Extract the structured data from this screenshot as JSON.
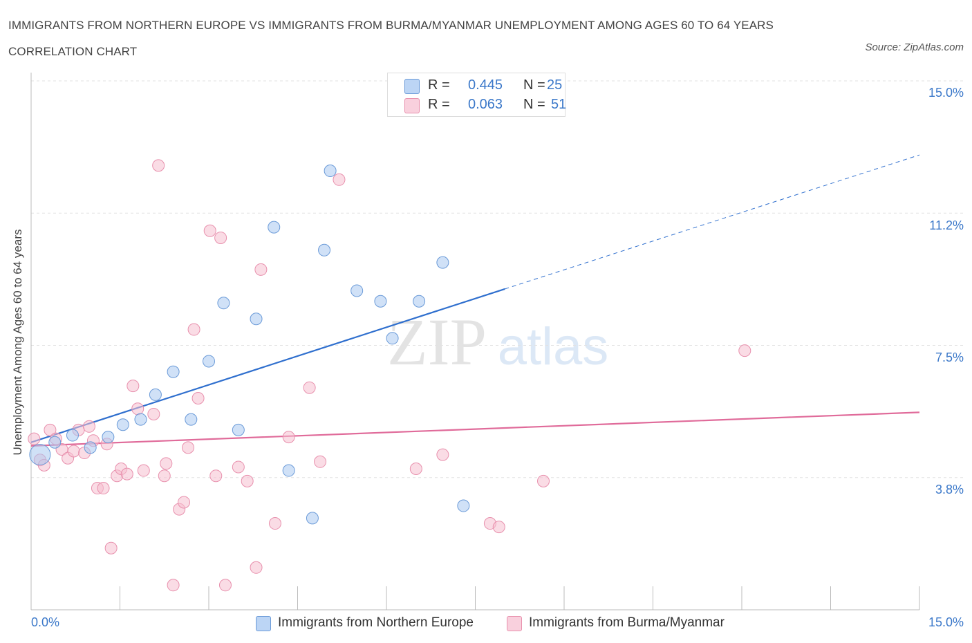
{
  "chart_data": {
    "type": "scatter",
    "title": "IMMIGRANTS FROM NORTHERN EUROPE VS IMMIGRANTS FROM BURMA/MYANMAR UNEMPLOYMENT AMONG AGES 60 TO 64 YEARS CORRELATION CHART",
    "source": "Source: ZipAtlas.com",
    "ylabel": "Unemployment Among Ages 60 to 64 years",
    "xlabel": "",
    "xlim": [
      0,
      15
    ],
    "ylim": [
      0,
      15
    ],
    "x_tick_labels": [
      "0.0%",
      "15.0%"
    ],
    "y_ticks": [
      {
        "value": 3.75,
        "label": "3.8%"
      },
      {
        "value": 7.5,
        "label": "7.5%"
      },
      {
        "value": 11.25,
        "label": "11.2%"
      },
      {
        "value": 15.0,
        "label": "15.0%"
      }
    ],
    "grid": true,
    "watermark": {
      "zip": "ZIP",
      "atlas": "atlas"
    },
    "legend": [
      {
        "r_label": "R =",
        "r_value": "0.445",
        "n_label": "N =",
        "n_value": "25"
      },
      {
        "r_label": "R =",
        "r_value": "0.063",
        "n_label": "N =",
        "n_value": "51"
      }
    ],
    "series": [
      {
        "name": "Immigrants from Northern Europe",
        "color": "#a9c8f0",
        "stroke": "#6a9ad8",
        "line_color": "#2f6fce",
        "trend": {
          "x0": 0.0,
          "y0": 4.75,
          "x1": 8.0,
          "y1": 9.1,
          "dash_to_x": 15.0,
          "dash_to_y": 12.9
        },
        "points": [
          {
            "x": 0.15,
            "y": 4.4,
            "s": "big"
          },
          {
            "x": 0.4,
            "y": 4.75
          },
          {
            "x": 0.7,
            "y": 4.95
          },
          {
            "x": 1.0,
            "y": 4.6
          },
          {
            "x": 1.3,
            "y": 4.9
          },
          {
            "x": 1.55,
            "y": 5.25
          },
          {
            "x": 1.85,
            "y": 5.4
          },
          {
            "x": 2.1,
            "y": 6.1
          },
          {
            "x": 2.4,
            "y": 6.75
          },
          {
            "x": 2.7,
            "y": 5.4
          },
          {
            "x": 3.0,
            "y": 7.05
          },
          {
            "x": 3.25,
            "y": 8.7
          },
          {
            "x": 3.5,
            "y": 5.1
          },
          {
            "x": 3.8,
            "y": 8.25
          },
          {
            "x": 4.1,
            "y": 10.85
          },
          {
            "x": 4.35,
            "y": 3.95
          },
          {
            "x": 4.75,
            "y": 2.6
          },
          {
            "x": 4.95,
            "y": 10.2
          },
          {
            "x": 5.05,
            "y": 12.45
          },
          {
            "x": 5.5,
            "y": 9.05
          },
          {
            "x": 5.9,
            "y": 8.75
          },
          {
            "x": 6.1,
            "y": 7.7
          },
          {
            "x": 6.55,
            "y": 8.75
          },
          {
            "x": 6.95,
            "y": 9.85
          },
          {
            "x": 7.3,
            "y": 2.95
          }
        ]
      },
      {
        "name": "Immigrants from Burma/Myanmar",
        "color": "#f6bfd0",
        "stroke": "#e890ad",
        "line_color": "#e06b9a",
        "trend": {
          "x0": 0.0,
          "y0": 4.65,
          "x1": 15.0,
          "y1": 5.6
        },
        "points": [
          {
            "x": 0.05,
            "y": 4.85
          },
          {
            "x": 0.15,
            "y": 4.25
          },
          {
            "x": 0.22,
            "y": 4.1
          },
          {
            "x": 0.32,
            "y": 5.1
          },
          {
            "x": 0.42,
            "y": 4.85
          },
          {
            "x": 0.52,
            "y": 4.55
          },
          {
            "x": 0.62,
            "y": 4.3
          },
          {
            "x": 0.72,
            "y": 4.5
          },
          {
            "x": 0.8,
            "y": 5.1
          },
          {
            "x": 0.9,
            "y": 4.45
          },
          {
            "x": 0.98,
            "y": 5.2
          },
          {
            "x": 1.05,
            "y": 4.8
          },
          {
            "x": 1.12,
            "y": 3.45
          },
          {
            "x": 1.22,
            "y": 3.45
          },
          {
            "x": 1.28,
            "y": 4.7
          },
          {
            "x": 1.35,
            "y": 1.75
          },
          {
            "x": 1.45,
            "y": 3.8
          },
          {
            "x": 1.52,
            "y": 4.0
          },
          {
            "x": 1.62,
            "y": 3.85
          },
          {
            "x": 1.72,
            "y": 6.35
          },
          {
            "x": 1.8,
            "y": 5.7
          },
          {
            "x": 1.9,
            "y": 3.95
          },
          {
            "x": 2.07,
            "y": 5.55
          },
          {
            "x": 2.15,
            "y": 12.6
          },
          {
            "x": 2.25,
            "y": 3.8
          },
          {
            "x": 2.28,
            "y": 4.15
          },
          {
            "x": 2.4,
            "y": 0.7
          },
          {
            "x": 2.5,
            "y": 2.85
          },
          {
            "x": 2.58,
            "y": 3.05
          },
          {
            "x": 2.65,
            "y": 4.6
          },
          {
            "x": 2.75,
            "y": 7.95
          },
          {
            "x": 2.82,
            "y": 6.0
          },
          {
            "x": 3.02,
            "y": 10.75
          },
          {
            "x": 3.12,
            "y": 3.8
          },
          {
            "x": 3.2,
            "y": 10.55
          },
          {
            "x": 3.28,
            "y": 0.7
          },
          {
            "x": 3.5,
            "y": 4.05
          },
          {
            "x": 3.65,
            "y": 3.65
          },
          {
            "x": 3.8,
            "y": 1.2
          },
          {
            "x": 3.88,
            "y": 9.65
          },
          {
            "x": 4.12,
            "y": 2.45
          },
          {
            "x": 4.35,
            "y": 4.9
          },
          {
            "x": 4.7,
            "y": 6.3
          },
          {
            "x": 4.88,
            "y": 4.2
          },
          {
            "x": 5.2,
            "y": 12.2
          },
          {
            "x": 6.5,
            "y": 4.0
          },
          {
            "x": 6.95,
            "y": 4.4
          },
          {
            "x": 7.75,
            "y": 2.45
          },
          {
            "x": 7.9,
            "y": 2.35
          },
          {
            "x": 8.65,
            "y": 3.65
          },
          {
            "x": 12.05,
            "y": 7.35
          }
        ]
      }
    ]
  }
}
